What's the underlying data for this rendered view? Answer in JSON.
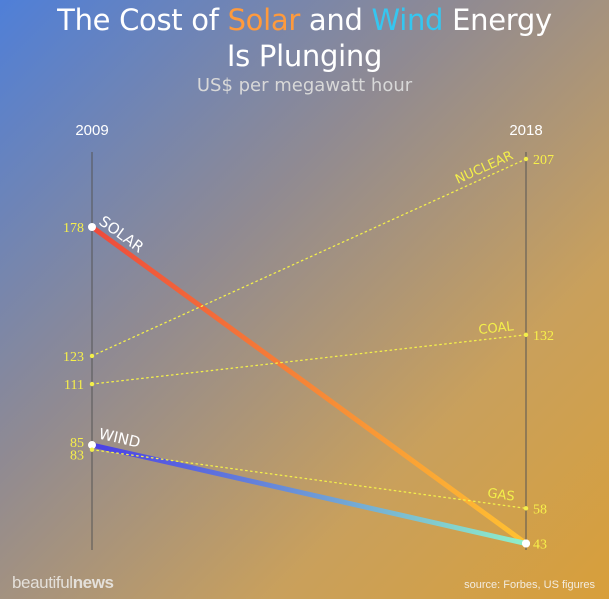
{
  "title": {
    "part1": "The Cost of ",
    "solar": "Solar",
    "part2": " and ",
    "wind": "Wind",
    "part3": " Energy",
    "line2": "Is Plunging"
  },
  "subtitle": "US$ per megawatt hour",
  "brand": {
    "light": "beautiful",
    "bold": "news"
  },
  "source": "source: Forbes, US figures",
  "colors": {
    "solar_start": "#ee4a3c",
    "solar_end": "#ffc232",
    "wind_start": "#4a3ee6",
    "wind_end": "#8ff0c8",
    "dotted": "#f3ef4a",
    "value_label": "#f7f04a",
    "axis": "#555555"
  },
  "chart_data": {
    "type": "slope",
    "x": [
      "2009",
      "2018"
    ],
    "ylim": [
      40,
      210
    ],
    "series": [
      {
        "name": "SOLAR",
        "values": [
          178,
          43
        ],
        "style": "gradient-solid"
      },
      {
        "name": "WIND",
        "values": [
          85,
          43
        ],
        "style": "gradient-solid"
      },
      {
        "name": "NUCLEAR",
        "values": [
          123,
          207
        ],
        "style": "dotted"
      },
      {
        "name": "COAL",
        "values": [
          111,
          132
        ],
        "style": "dotted"
      },
      {
        "name": "GAS",
        "values": [
          83,
          58
        ],
        "style": "dotted"
      }
    ]
  }
}
